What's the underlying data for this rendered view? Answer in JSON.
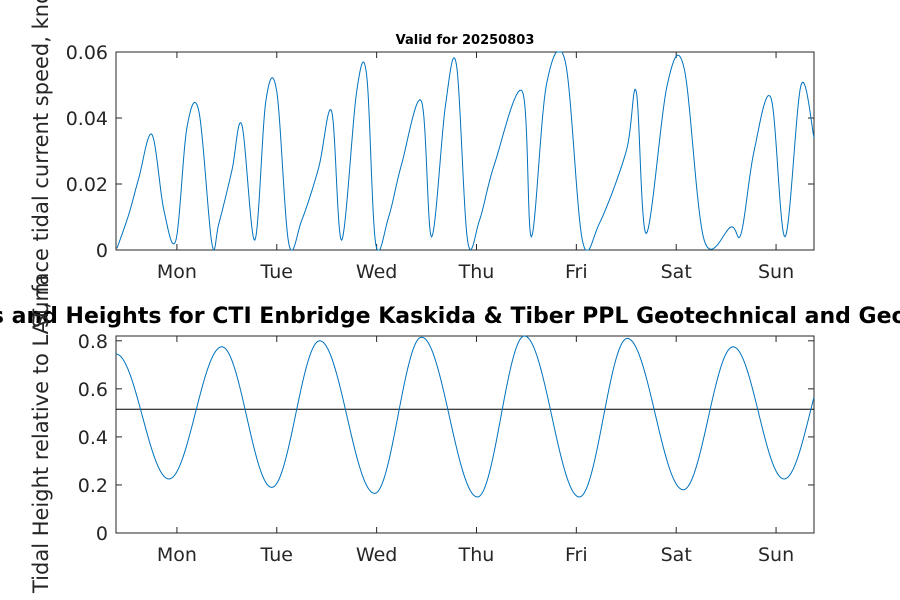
{
  "figure": {
    "main_title": "Tidal Currents and Heights for CTI Enbridge  Kaskida & Tiber PPL Geotechnical and Geophysical Survey",
    "valid_text": "Valid for 20250803"
  },
  "colors": {
    "series": "#0072bd",
    "axis": "#262626",
    "reference_line": "#000000"
  },
  "chart_data": [
    {
      "type": "line",
      "ylabel": "Surface tidal current speed, knots",
      "ylim": [
        0,
        0.06
      ],
      "yticks": [
        0,
        0.02,
        0.04,
        0.06
      ],
      "ytick_labels": [
        "0",
        "0.02",
        "0.04",
        "0.06"
      ],
      "xlim": [
        0.39,
        7.38
      ],
      "xticks": [
        1,
        2,
        3,
        4,
        5,
        6,
        7
      ],
      "xtick_labels": [
        "Mon",
        "Tue",
        "Wed",
        "Thu",
        "Fri",
        "Sat",
        "Sun"
      ],
      "x_unit": "days",
      "series": [
        {
          "x": [
            0.4,
            0.52,
            0.62,
            0.75,
            0.87,
            0.99,
            1.1,
            1.22,
            1.35,
            1.42,
            1.55,
            1.65,
            1.78,
            1.89,
            2.0,
            2.12,
            2.25,
            2.42,
            2.55,
            2.65,
            2.8,
            2.9,
            2.99,
            3.12,
            3.25,
            3.45,
            3.55,
            3.69,
            3.8,
            3.91,
            4.03,
            4.18,
            4.46,
            4.55,
            4.7,
            4.89,
            5.06,
            5.23,
            5.5,
            5.6,
            5.7,
            5.91,
            6.08,
            6.28,
            6.55,
            6.65,
            6.78,
            6.95,
            7.09,
            7.25,
            7.38
          ],
          "y": [
            0.0005,
            0.011,
            0.022,
            0.035,
            0.012,
            0.003,
            0.037,
            0.042,
            0.002,
            0.008,
            0.024,
            0.038,
            0.003,
            0.045,
            0.048,
            0.002,
            0.009,
            0.025,
            0.042,
            0.003,
            0.048,
            0.053,
            0.002,
            0.01,
            0.026,
            0.045,
            0.004,
            0.044,
            0.056,
            0.003,
            0.009,
            0.026,
            0.048,
            0.004,
            0.05,
            0.057,
            0.003,
            0.008,
            0.03,
            0.048,
            0.005,
            0.05,
            0.055,
            0.003,
            0.007,
            0.005,
            0.03,
            0.046,
            0.004,
            0.05,
            0.034
          ]
        }
      ]
    },
    {
      "type": "line",
      "ylabel": "Tidal Height relative to LAT, m",
      "ylim": [
        0,
        0.82
      ],
      "yticks": [
        0,
        0.2,
        0.4,
        0.6,
        0.8
      ],
      "ytick_labels": [
        "0",
        "0.2",
        "0.4",
        "0.6",
        "0.8"
      ],
      "xlim": [
        0.39,
        7.38
      ],
      "xticks": [
        1,
        2,
        3,
        4,
        5,
        6,
        7
      ],
      "xtick_labels": [
        "Mon",
        "Tue",
        "Wed",
        "Thu",
        "Fri",
        "Sat",
        "Sun"
      ],
      "x_unit": "days",
      "reference_line": 0.515,
      "series": [
        {
          "x": [
            0.39,
            0.92,
            1.45,
            1.95,
            2.43,
            2.98,
            3.45,
            4.01,
            4.48,
            5.03,
            5.51,
            6.07,
            6.57,
            7.08,
            7.6
          ],
          "y": [
            0.745,
            0.225,
            0.775,
            0.19,
            0.8,
            0.165,
            0.815,
            0.15,
            0.82,
            0.15,
            0.81,
            0.18,
            0.775,
            0.225,
            0.775
          ]
        }
      ]
    }
  ]
}
